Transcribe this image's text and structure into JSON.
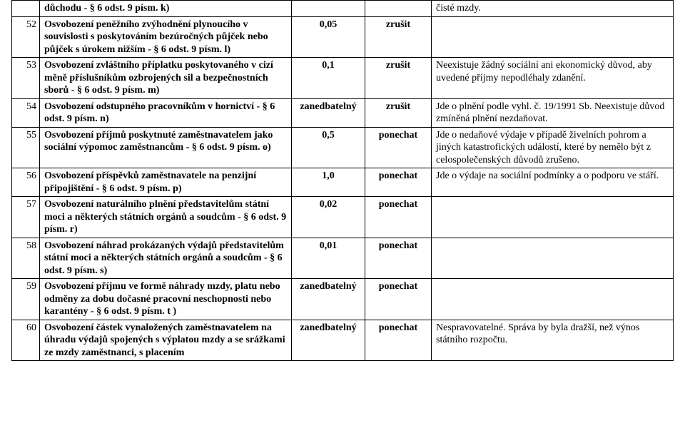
{
  "rows": [
    {
      "num": "",
      "desc": "důchodu - § 6 odst. 9 písm. k)",
      "val": "",
      "act": "",
      "note": "čisté mzdy."
    },
    {
      "num": "52",
      "desc": "Osvobození peněžního zvýhodnění plynoucího v souvislosti s poskytováním bezúročných půjček nebo půjček s úrokem nižším - § 6 odst. 9 písm. l)",
      "val": "0,05",
      "act": "zrušit",
      "note": ""
    },
    {
      "num": "53",
      "desc": "Osvobození zvláštního příplatku poskytovaného v cizí měně příslušníkům ozbrojených sil a bezpečnostních sborů - § 6 odst. 9 písm. m)",
      "val": "0,1",
      "act": "zrušit",
      "note": "Neexistuje žádný sociální ani ekonomický důvod, aby uvedené příjmy nepodléhaly zdanění."
    },
    {
      "num": "54",
      "desc": "Osvobození odstupného pracovníkům v hornictví - § 6 odst. 9 písm. n)",
      "val": "zanedbatelný",
      "act": "zrušit",
      "note": "Jde o plnění podle vyhl. č. 19/1991 Sb. Neexistuje důvod zmíněná plnění nezdaňovat."
    },
    {
      "num": "55",
      "desc": "Osvobození příjmů poskytnuté zaměstnavatelem jako sociální výpomoc zaměstnancům -  § 6 odst. 9 písm. o)",
      "val": "0,5",
      "act": "ponechat",
      "note": "Jde o nedaňové  výdaje v případě živelních pohrom a jiných katastrofických událostí, které by nemělo být z celospolečenských  důvodů zrušeno."
    },
    {
      "num": "56",
      "desc": "Osvobození příspěvků zaměstnavatele na penzijní připojištění - § 6 odst. 9 písm. p)",
      "val": "1,0",
      "act": "ponechat",
      "note": "Jde o  výdaje na sociální podmínky a o podporu ve stáří."
    },
    {
      "num": "57",
      "desc": "Osvobození naturálního plnění představitelům státní moci a některých státních orgánů a soudcům - § 6 odst. 9 písm. r)",
      "val": "0,02",
      "act": "ponechat",
      "note": ""
    },
    {
      "num": "58",
      "desc": "Osvobození náhrad prokázaných výdajů představitelům státní moci a některých státních orgánů a soudcům - § 6 odst. 9 písm. s)",
      "val": "0,01",
      "act": "ponechat",
      "note": ""
    },
    {
      "num": "59",
      "desc": "Osvobození příjmu ve formě náhrady mzdy, platu nebo odměny za dobu dočasné pracovní neschopnosti nebo karantény - § 6 odst. 9 písm. t )",
      "val": "zanedbatelný",
      "act": "ponechat",
      "note": ""
    },
    {
      "num": "60",
      "desc": "Osvobození částek vynaložených zaměstnavatelem na úhradu výdajů spojených s výplatou mzdy a se srážkami ze mzdy zaměstnanci, s placením",
      "val": "zanedbatelný",
      "act": "ponechat",
      "note": "Nespravovatelné. Správa by byla dražší, než výnos státního rozpočtu."
    }
  ]
}
